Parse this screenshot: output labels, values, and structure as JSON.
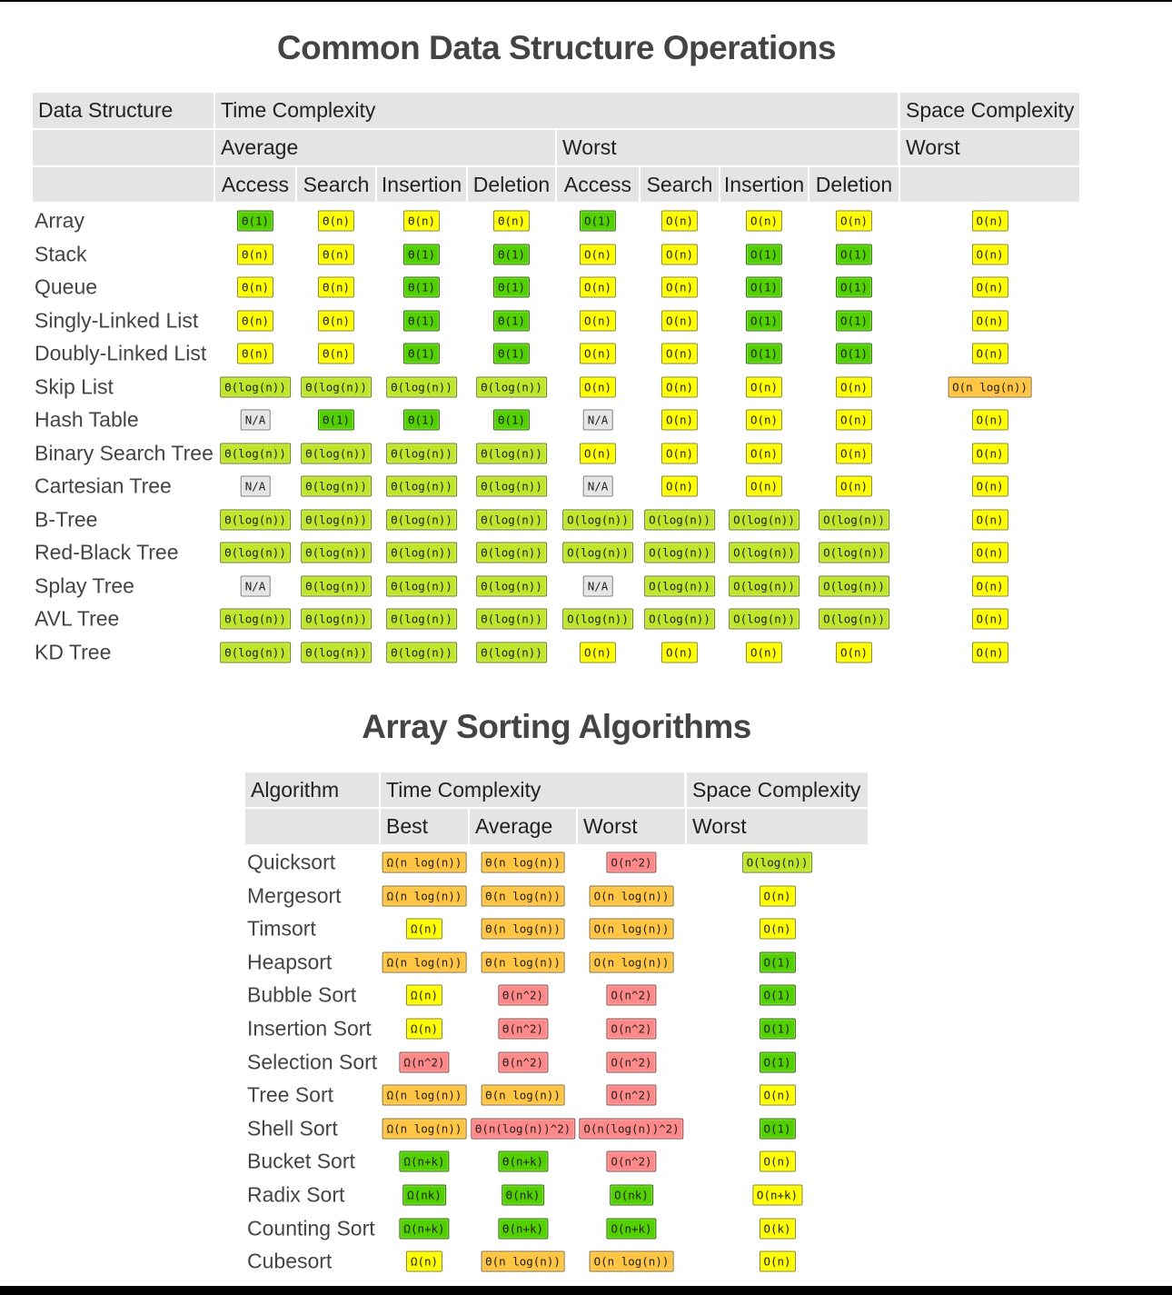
{
  "data_structures": {
    "title": "Common Data Structure Operations",
    "header": {
      "label": "Data Structure",
      "time": "Time Complexity",
      "space": "Space Complexity",
      "average": "Average",
      "worst": "Worst",
      "space_worst": "Worst",
      "columns": [
        "Access",
        "Search",
        "Insertion",
        "Deletion",
        "Access",
        "Search",
        "Insertion",
        "Deletion"
      ]
    },
    "rows": [
      {
        "name": "Array",
        "cells": [
          {
            "text": "Θ(1)",
            "color": "#53d000"
          },
          {
            "text": "Θ(n)",
            "color": "#ffff00"
          },
          {
            "text": "Θ(n)",
            "color": "#ffff00"
          },
          {
            "text": "Θ(n)",
            "color": "#ffff00"
          },
          {
            "text": "O(1)",
            "color": "#53d000"
          },
          {
            "text": "O(n)",
            "color": "#ffff00"
          },
          {
            "text": "O(n)",
            "color": "#ffff00"
          },
          {
            "text": "O(n)",
            "color": "#ffff00"
          },
          {
            "text": "O(n)",
            "color": "#ffff00"
          }
        ]
      },
      {
        "name": "Stack",
        "cells": [
          {
            "text": "Θ(n)",
            "color": "#ffff00"
          },
          {
            "text": "Θ(n)",
            "color": "#ffff00"
          },
          {
            "text": "Θ(1)",
            "color": "#53d000"
          },
          {
            "text": "Θ(1)",
            "color": "#53d000"
          },
          {
            "text": "O(n)",
            "color": "#ffff00"
          },
          {
            "text": "O(n)",
            "color": "#ffff00"
          },
          {
            "text": "O(1)",
            "color": "#53d000"
          },
          {
            "text": "O(1)",
            "color": "#53d000"
          },
          {
            "text": "O(n)",
            "color": "#ffff00"
          }
        ]
      },
      {
        "name": "Queue",
        "cells": [
          {
            "text": "Θ(n)",
            "color": "#ffff00"
          },
          {
            "text": "Θ(n)",
            "color": "#ffff00"
          },
          {
            "text": "Θ(1)",
            "color": "#53d000"
          },
          {
            "text": "Θ(1)",
            "color": "#53d000"
          },
          {
            "text": "O(n)",
            "color": "#ffff00"
          },
          {
            "text": "O(n)",
            "color": "#ffff00"
          },
          {
            "text": "O(1)",
            "color": "#53d000"
          },
          {
            "text": "O(1)",
            "color": "#53d000"
          },
          {
            "text": "O(n)",
            "color": "#ffff00"
          }
        ]
      },
      {
        "name": "Singly-Linked List",
        "cells": [
          {
            "text": "Θ(n)",
            "color": "#ffff00"
          },
          {
            "text": "Θ(n)",
            "color": "#ffff00"
          },
          {
            "text": "Θ(1)",
            "color": "#53d000"
          },
          {
            "text": "Θ(1)",
            "color": "#53d000"
          },
          {
            "text": "O(n)",
            "color": "#ffff00"
          },
          {
            "text": "O(n)",
            "color": "#ffff00"
          },
          {
            "text": "O(1)",
            "color": "#53d000"
          },
          {
            "text": "O(1)",
            "color": "#53d000"
          },
          {
            "text": "O(n)",
            "color": "#ffff00"
          }
        ]
      },
      {
        "name": "Doubly-Linked List",
        "cells": [
          {
            "text": "Θ(n)",
            "color": "#ffff00"
          },
          {
            "text": "Θ(n)",
            "color": "#ffff00"
          },
          {
            "text": "Θ(1)",
            "color": "#53d000"
          },
          {
            "text": "Θ(1)",
            "color": "#53d000"
          },
          {
            "text": "O(n)",
            "color": "#ffff00"
          },
          {
            "text": "O(n)",
            "color": "#ffff00"
          },
          {
            "text": "O(1)",
            "color": "#53d000"
          },
          {
            "text": "O(1)",
            "color": "#53d000"
          },
          {
            "text": "O(n)",
            "color": "#ffff00"
          }
        ]
      },
      {
        "name": "Skip List",
        "cells": [
          {
            "text": "Θ(log(n))",
            "color": "#bfe62a"
          },
          {
            "text": "Θ(log(n))",
            "color": "#bfe62a"
          },
          {
            "text": "Θ(log(n))",
            "color": "#bfe62a"
          },
          {
            "text": "Θ(log(n))",
            "color": "#bfe62a"
          },
          {
            "text": "O(n)",
            "color": "#ffff00"
          },
          {
            "text": "O(n)",
            "color": "#ffff00"
          },
          {
            "text": "O(n)",
            "color": "#ffff00"
          },
          {
            "text": "O(n)",
            "color": "#ffff00"
          },
          {
            "text": "O(n log(n))",
            "color": "#ffc543"
          }
        ]
      },
      {
        "name": "Hash Table",
        "cells": [
          {
            "text": "N/A",
            "color": "#e5e5e5"
          },
          {
            "text": "Θ(1)",
            "color": "#53d000"
          },
          {
            "text": "Θ(1)",
            "color": "#53d000"
          },
          {
            "text": "Θ(1)",
            "color": "#53d000"
          },
          {
            "text": "N/A",
            "color": "#e5e5e5"
          },
          {
            "text": "O(n)",
            "color": "#ffff00"
          },
          {
            "text": "O(n)",
            "color": "#ffff00"
          },
          {
            "text": "O(n)",
            "color": "#ffff00"
          },
          {
            "text": "O(n)",
            "color": "#ffff00"
          }
        ]
      },
      {
        "name": "Binary Search Tree",
        "cells": [
          {
            "text": "Θ(log(n))",
            "color": "#bfe62a"
          },
          {
            "text": "Θ(log(n))",
            "color": "#bfe62a"
          },
          {
            "text": "Θ(log(n))",
            "color": "#bfe62a"
          },
          {
            "text": "Θ(log(n))",
            "color": "#bfe62a"
          },
          {
            "text": "O(n)",
            "color": "#ffff00"
          },
          {
            "text": "O(n)",
            "color": "#ffff00"
          },
          {
            "text": "O(n)",
            "color": "#ffff00"
          },
          {
            "text": "O(n)",
            "color": "#ffff00"
          },
          {
            "text": "O(n)",
            "color": "#ffff00"
          }
        ]
      },
      {
        "name": "Cartesian Tree",
        "cells": [
          {
            "text": "N/A",
            "color": "#e5e5e5"
          },
          {
            "text": "Θ(log(n))",
            "color": "#bfe62a"
          },
          {
            "text": "Θ(log(n))",
            "color": "#bfe62a"
          },
          {
            "text": "Θ(log(n))",
            "color": "#bfe62a"
          },
          {
            "text": "N/A",
            "color": "#e5e5e5"
          },
          {
            "text": "O(n)",
            "color": "#ffff00"
          },
          {
            "text": "O(n)",
            "color": "#ffff00"
          },
          {
            "text": "O(n)",
            "color": "#ffff00"
          },
          {
            "text": "O(n)",
            "color": "#ffff00"
          }
        ]
      },
      {
        "name": "B-Tree",
        "cells": [
          {
            "text": "Θ(log(n))",
            "color": "#bfe62a"
          },
          {
            "text": "Θ(log(n))",
            "color": "#bfe62a"
          },
          {
            "text": "Θ(log(n))",
            "color": "#bfe62a"
          },
          {
            "text": "Θ(log(n))",
            "color": "#bfe62a"
          },
          {
            "text": "O(log(n))",
            "color": "#bfe62a"
          },
          {
            "text": "O(log(n))",
            "color": "#bfe62a"
          },
          {
            "text": "O(log(n))",
            "color": "#bfe62a"
          },
          {
            "text": "O(log(n))",
            "color": "#bfe62a"
          },
          {
            "text": "O(n)",
            "color": "#ffff00"
          }
        ]
      },
      {
        "name": "Red-Black Tree",
        "cells": [
          {
            "text": "Θ(log(n))",
            "color": "#bfe62a"
          },
          {
            "text": "Θ(log(n))",
            "color": "#bfe62a"
          },
          {
            "text": "Θ(log(n))",
            "color": "#bfe62a"
          },
          {
            "text": "Θ(log(n))",
            "color": "#bfe62a"
          },
          {
            "text": "O(log(n))",
            "color": "#bfe62a"
          },
          {
            "text": "O(log(n))",
            "color": "#bfe62a"
          },
          {
            "text": "O(log(n))",
            "color": "#bfe62a"
          },
          {
            "text": "O(log(n))",
            "color": "#bfe62a"
          },
          {
            "text": "O(n)",
            "color": "#ffff00"
          }
        ]
      },
      {
        "name": "Splay Tree",
        "cells": [
          {
            "text": "N/A",
            "color": "#e5e5e5"
          },
          {
            "text": "Θ(log(n))",
            "color": "#bfe62a"
          },
          {
            "text": "Θ(log(n))",
            "color": "#bfe62a"
          },
          {
            "text": "Θ(log(n))",
            "color": "#bfe62a"
          },
          {
            "text": "N/A",
            "color": "#e5e5e5"
          },
          {
            "text": "O(log(n))",
            "color": "#bfe62a"
          },
          {
            "text": "O(log(n))",
            "color": "#bfe62a"
          },
          {
            "text": "O(log(n))",
            "color": "#bfe62a"
          },
          {
            "text": "O(n)",
            "color": "#ffff00"
          }
        ]
      },
      {
        "name": "AVL Tree",
        "cells": [
          {
            "text": "Θ(log(n))",
            "color": "#bfe62a"
          },
          {
            "text": "Θ(log(n))",
            "color": "#bfe62a"
          },
          {
            "text": "Θ(log(n))",
            "color": "#bfe62a"
          },
          {
            "text": "Θ(log(n))",
            "color": "#bfe62a"
          },
          {
            "text": "O(log(n))",
            "color": "#bfe62a"
          },
          {
            "text": "O(log(n))",
            "color": "#bfe62a"
          },
          {
            "text": "O(log(n))",
            "color": "#bfe62a"
          },
          {
            "text": "O(log(n))",
            "color": "#bfe62a"
          },
          {
            "text": "O(n)",
            "color": "#ffff00"
          }
        ]
      },
      {
        "name": "KD Tree",
        "cells": [
          {
            "text": "Θ(log(n))",
            "color": "#bfe62a"
          },
          {
            "text": "Θ(log(n))",
            "color": "#bfe62a"
          },
          {
            "text": "Θ(log(n))",
            "color": "#bfe62a"
          },
          {
            "text": "Θ(log(n))",
            "color": "#bfe62a"
          },
          {
            "text": "O(n)",
            "color": "#ffff00"
          },
          {
            "text": "O(n)",
            "color": "#ffff00"
          },
          {
            "text": "O(n)",
            "color": "#ffff00"
          },
          {
            "text": "O(n)",
            "color": "#ffff00"
          },
          {
            "text": "O(n)",
            "color": "#ffff00"
          }
        ]
      }
    ]
  },
  "sorting": {
    "title": "Array Sorting Algorithms",
    "header": {
      "label": "Algorithm",
      "time": "Time Complexity",
      "space": "Space Complexity",
      "columns": [
        "Best",
        "Average",
        "Worst"
      ],
      "space_worst": "Worst"
    },
    "rows": [
      {
        "name": "Quicksort",
        "cells": [
          {
            "text": "Ω(n log(n))",
            "color": "#ffc543"
          },
          {
            "text": "Θ(n log(n))",
            "color": "#ffc543"
          },
          {
            "text": "O(n^2)",
            "color": "#ff8989"
          },
          {
            "text": "O(log(n))",
            "color": "#bfe62a"
          }
        ]
      },
      {
        "name": "Mergesort",
        "cells": [
          {
            "text": "Ω(n log(n))",
            "color": "#ffc543"
          },
          {
            "text": "Θ(n log(n))",
            "color": "#ffc543"
          },
          {
            "text": "O(n log(n))",
            "color": "#ffc543"
          },
          {
            "text": "O(n)",
            "color": "#ffff00"
          }
        ]
      },
      {
        "name": "Timsort",
        "cells": [
          {
            "text": "Ω(n)",
            "color": "#ffff00"
          },
          {
            "text": "Θ(n log(n))",
            "color": "#ffc543"
          },
          {
            "text": "O(n log(n))",
            "color": "#ffc543"
          },
          {
            "text": "O(n)",
            "color": "#ffff00"
          }
        ]
      },
      {
        "name": "Heapsort",
        "cells": [
          {
            "text": "Ω(n log(n))",
            "color": "#ffc543"
          },
          {
            "text": "Θ(n log(n))",
            "color": "#ffc543"
          },
          {
            "text": "O(n log(n))",
            "color": "#ffc543"
          },
          {
            "text": "O(1)",
            "color": "#53d000"
          }
        ]
      },
      {
        "name": "Bubble Sort",
        "cells": [
          {
            "text": "Ω(n)",
            "color": "#ffff00"
          },
          {
            "text": "Θ(n^2)",
            "color": "#ff8989"
          },
          {
            "text": "O(n^2)",
            "color": "#ff8989"
          },
          {
            "text": "O(1)",
            "color": "#53d000"
          }
        ]
      },
      {
        "name": "Insertion Sort",
        "cells": [
          {
            "text": "Ω(n)",
            "color": "#ffff00"
          },
          {
            "text": "Θ(n^2)",
            "color": "#ff8989"
          },
          {
            "text": "O(n^2)",
            "color": "#ff8989"
          },
          {
            "text": "O(1)",
            "color": "#53d000"
          }
        ]
      },
      {
        "name": "Selection Sort",
        "cells": [
          {
            "text": "Ω(n^2)",
            "color": "#ff8989"
          },
          {
            "text": "Θ(n^2)",
            "color": "#ff8989"
          },
          {
            "text": "O(n^2)",
            "color": "#ff8989"
          },
          {
            "text": "O(1)",
            "color": "#53d000"
          }
        ]
      },
      {
        "name": "Tree Sort",
        "cells": [
          {
            "text": "Ω(n log(n))",
            "color": "#ffc543"
          },
          {
            "text": "Θ(n log(n))",
            "color": "#ffc543"
          },
          {
            "text": "O(n^2)",
            "color": "#ff8989"
          },
          {
            "text": "O(n)",
            "color": "#ffff00"
          }
        ]
      },
      {
        "name": "Shell Sort",
        "cells": [
          {
            "text": "Ω(n log(n))",
            "color": "#ffc543"
          },
          {
            "text": "Θ(n(log(n))^2)",
            "color": "#ff8989"
          },
          {
            "text": "O(n(log(n))^2)",
            "color": "#ff8989"
          },
          {
            "text": "O(1)",
            "color": "#53d000"
          }
        ]
      },
      {
        "name": "Bucket Sort",
        "cells": [
          {
            "text": "Ω(n+k)",
            "color": "#53d000"
          },
          {
            "text": "Θ(n+k)",
            "color": "#53d000"
          },
          {
            "text": "O(n^2)",
            "color": "#ff8989"
          },
          {
            "text": "O(n)",
            "color": "#ffff00"
          }
        ]
      },
      {
        "name": "Radix Sort",
        "cells": [
          {
            "text": "Ω(nk)",
            "color": "#53d000"
          },
          {
            "text": "Θ(nk)",
            "color": "#53d000"
          },
          {
            "text": "O(nk)",
            "color": "#53d000"
          },
          {
            "text": "O(n+k)",
            "color": "#ffff00"
          }
        ]
      },
      {
        "name": "Counting Sort",
        "cells": [
          {
            "text": "Ω(n+k)",
            "color": "#53d000"
          },
          {
            "text": "Θ(n+k)",
            "color": "#53d000"
          },
          {
            "text": "O(n+k)",
            "color": "#53d000"
          },
          {
            "text": "O(k)",
            "color": "#ffff00"
          }
        ]
      },
      {
        "name": "Cubesort",
        "cells": [
          {
            "text": "Ω(n)",
            "color": "#ffff00"
          },
          {
            "text": "Θ(n log(n))",
            "color": "#ffc543"
          },
          {
            "text": "O(n log(n))",
            "color": "#ffc543"
          },
          {
            "text": "O(n)",
            "color": "#ffff00"
          }
        ]
      }
    ]
  }
}
